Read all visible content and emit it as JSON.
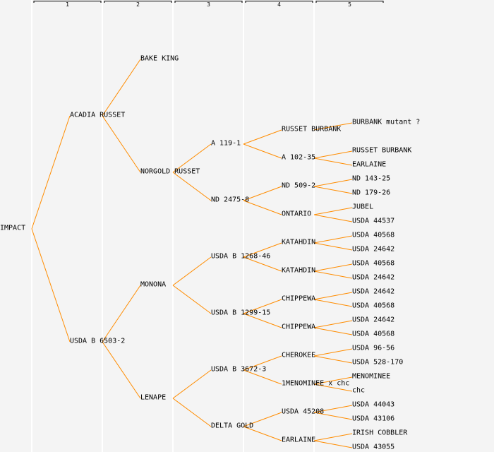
{
  "colors": {
    "background": "#f4f4f4",
    "line": "#ff8c00",
    "separator": "#ffffff",
    "text": "#000000"
  },
  "columns": [
    "1",
    "2",
    "3",
    "4",
    "5"
  ],
  "tree": {
    "name": "IMPACT",
    "parents": [
      {
        "name": "ACADIA RUSSET",
        "parents": [
          {
            "name": "BAKE KING",
            "parents": []
          },
          {
            "name": "NORGOLD RUSSET",
            "parents": [
              {
                "name": "A 119-1",
                "parents": [
                  {
                    "name": "RUSSET BURBANK",
                    "parents": [
                      {
                        "name": "BURBANK mutant ?"
                      },
                      null
                    ]
                  },
                  {
                    "name": "A 102-35",
                    "parents": [
                      {
                        "name": "RUSSET BURBANK"
                      },
                      {
                        "name": "EARLAINE"
                      }
                    ]
                  }
                ]
              },
              {
                "name": "ND 2475-8",
                "parents": [
                  {
                    "name": "ND 509-2",
                    "parents": [
                      {
                        "name": "ND 143-25"
                      },
                      {
                        "name": "ND 179-26"
                      }
                    ]
                  },
                  {
                    "name": "ONTARIO",
                    "parents": [
                      {
                        "name": "JUBEL"
                      },
                      {
                        "name": "USDA 44537"
                      }
                    ]
                  }
                ]
              }
            ]
          }
        ]
      },
      {
        "name": "USDA B 6503-2",
        "parents": [
          {
            "name": "MONONA",
            "parents": [
              {
                "name": "USDA B 1268-46",
                "parents": [
                  {
                    "name": "KATAHDIN",
                    "parents": [
                      {
                        "name": "USDA 40568"
                      },
                      {
                        "name": "USDA 24642"
                      }
                    ]
                  },
                  {
                    "name": "KATAHDIN",
                    "parents": [
                      {
                        "name": "USDA 40568"
                      },
                      {
                        "name": "USDA 24642"
                      }
                    ]
                  }
                ]
              },
              {
                "name": "USDA B 1299-15",
                "parents": [
                  {
                    "name": "CHIPPEWA",
                    "parents": [
                      {
                        "name": "USDA 24642"
                      },
                      {
                        "name": "USDA 40568"
                      }
                    ]
                  },
                  {
                    "name": "CHIPPEWA",
                    "parents": [
                      {
                        "name": "USDA 24642"
                      },
                      {
                        "name": "USDA 40568"
                      }
                    ]
                  }
                ]
              }
            ]
          },
          {
            "name": "LENAPE",
            "parents": [
              {
                "name": "USDA B 3672-3",
                "parents": [
                  {
                    "name": "CHEROKEE",
                    "parents": [
                      {
                        "name": "USDA 96-56"
                      },
                      {
                        "name": "USDA 528-170"
                      }
                    ]
                  },
                  {
                    "name": "1MENOMINEE x chc",
                    "parents": [
                      {
                        "name": "MENOMINEE"
                      },
                      {
                        "name": "chc"
                      }
                    ]
                  }
                ]
              },
              {
                "name": "DELTA GOLD",
                "parents": [
                  {
                    "name": "USDA 45208",
                    "parents": [
                      {
                        "name": "USDA 44043"
                      },
                      {
                        "name": "USDA 43106"
                      }
                    ]
                  },
                  {
                    "name": "EARLAINE",
                    "parents": [
                      {
                        "name": "IRISH COBBLER"
                      },
                      {
                        "name": "USDA 43055"
                      }
                    ]
                  }
                ]
              }
            ]
          }
        ]
      }
    ]
  }
}
